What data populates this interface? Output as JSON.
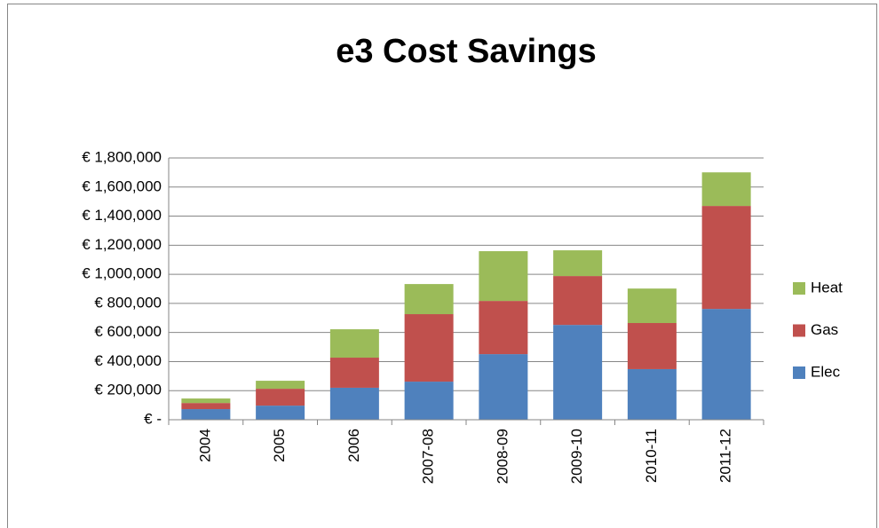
{
  "chart_data": {
    "type": "stacked_bar",
    "title": "e3 Cost Savings",
    "categories": [
      "2004",
      "2005",
      "2006",
      "2007-08",
      "2008-09",
      "2009-10",
      "2010-11",
      "2011-12"
    ],
    "series": [
      {
        "name": "Elec",
        "color": "#4f81bd",
        "values": [
          73000,
          97000,
          220000,
          262000,
          451000,
          652000,
          348000,
          762000
        ]
      },
      {
        "name": "Gas",
        "color": "#c0504d",
        "values": [
          42000,
          116000,
          207000,
          464000,
          366000,
          336000,
          317000,
          708000
        ]
      },
      {
        "name": "Heat",
        "color": "#9bbb59",
        "values": [
          31000,
          55000,
          195000,
          207000,
          342000,
          177000,
          237000,
          231000
        ]
      }
    ],
    "ylim": [
      0,
      1800000
    ],
    "yticks": [
      {
        "value": 0,
        "label": "€ -"
      },
      {
        "value": 200000,
        "label": "€ 200,000"
      },
      {
        "value": 400000,
        "label": "€ 400,000"
      },
      {
        "value": 600000,
        "label": "€ 600,000"
      },
      {
        "value": 800000,
        "label": "€ 800,000"
      },
      {
        "value": 1000000,
        "label": "€ 1,000,000"
      },
      {
        "value": 1200000,
        "label": "€ 1,200,000"
      },
      {
        "value": 1400000,
        "label": "€ 1,400,000"
      },
      {
        "value": 1600000,
        "label": "€ 1,600,000"
      },
      {
        "value": 1800000,
        "label": "€ 1,800,000"
      }
    ],
    "grid": true,
    "legend": "right"
  }
}
